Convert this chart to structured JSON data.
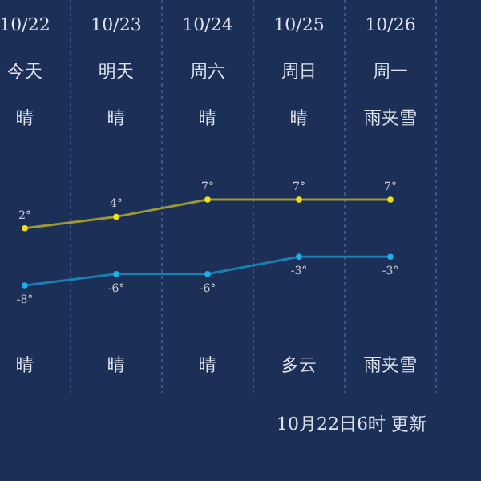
{
  "chart_data": {
    "type": "line",
    "categories": [
      "10/22",
      "10/23",
      "10/24",
      "10/25",
      "10/26"
    ],
    "series": [
      {
        "color": "#f2df1c",
        "values": [
          2,
          4,
          7,
          7,
          7
        ],
        "value_labels": [
          "2°",
          "4°",
          "7°",
          "7°",
          "7°"
        ]
      },
      {
        "color": "#1ab0ec",
        "values": [
          -8,
          -6,
          -6,
          -3,
          -3
        ],
        "value_labels": [
          "-8°",
          "-6°",
          "-6°",
          "-3°",
          "-3°"
        ]
      }
    ],
    "annotations": [
      "今天",
      "明天",
      "周六",
      "周日",
      "周一",
      "晴",
      "晴",
      "晴",
      "晴",
      "雨夹雪",
      "晴",
      "晴",
      "晴",
      "多云",
      "雨夹雪",
      "10月22日6时 更新"
    ],
    "marker": "circle",
    "grid": "x"
  }
}
